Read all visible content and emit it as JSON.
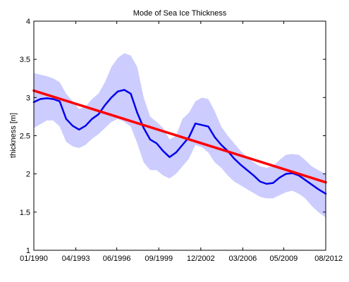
{
  "chart_data": {
    "type": "line",
    "title": "Mode of Sea Ice Thickness",
    "xlabel": "",
    "ylabel": "thickness [m]",
    "xlim": [
      1990.0,
      2012.5833
    ],
    "ylim": [
      1,
      4
    ],
    "grid": false,
    "x_ticks": [
      {
        "label": "01/1990",
        "value": 1990.0
      },
      {
        "label": "04/1993",
        "value": 1993.25
      },
      {
        "label": "06/1996",
        "value": 1996.4167
      },
      {
        "label": "09/1999",
        "value": 1999.6667
      },
      {
        "label": "12/2002",
        "value": 2002.9167
      },
      {
        "label": "03/2006",
        "value": 2006.1667
      },
      {
        "label": "05/2009",
        "value": 2009.3333
      },
      {
        "label": "08/2012",
        "value": 2012.5833
      }
    ],
    "y_ticks": [
      "1",
      "1.5",
      "2",
      "2.5",
      "3",
      "3.5",
      "4"
    ],
    "colors": {
      "mode_line": "#0000ee",
      "trend_line": "#ff0000",
      "uncertainty_band": "#ccccff"
    },
    "series": [
      {
        "type": "line",
        "x": [
          1990.0,
          1990.5,
          1991.0,
          1991.5,
          1992.0,
          1992.5,
          1993.0,
          1993.5,
          1994.0,
          1994.5,
          1995.0,
          1995.5,
          1996.0,
          1996.5,
          1997.0,
          1997.5,
          1998.0,
          1998.5,
          1999.0,
          1999.5,
          2000.0,
          2000.5,
          2001.0,
          2001.5,
          2002.0,
          2002.5,
          2003.0,
          2003.5,
          2004.0,
          2004.5,
          2005.0,
          2005.5,
          2006.0,
          2006.5,
          2007.0,
          2007.5,
          2008.0,
          2008.5,
          2009.0,
          2009.5,
          2010.0,
          2010.5,
          2011.0,
          2011.5,
          2012.0,
          2012.5833
        ],
        "y": [
          2.94,
          2.98,
          2.99,
          2.98,
          2.95,
          2.72,
          2.63,
          2.58,
          2.63,
          2.72,
          2.78,
          2.9,
          3.0,
          3.08,
          3.1,
          3.05,
          2.8,
          2.6,
          2.45,
          2.4,
          2.3,
          2.22,
          2.28,
          2.38,
          2.48,
          2.66,
          2.64,
          2.62,
          2.48,
          2.38,
          2.3,
          2.2,
          2.12,
          2.05,
          1.98,
          1.9,
          1.87,
          1.88,
          1.95,
          2.0,
          2.01,
          1.98,
          1.92,
          1.86,
          1.8,
          1.74
        ]
      },
      {
        "type": "line",
        "x": [
          1990.0,
          2012.5833
        ],
        "y": [
          3.09,
          1.89
        ]
      }
    ],
    "band": {
      "x": [
        1990.0,
        1990.5,
        1991.0,
        1991.5,
        1992.0,
        1992.5,
        1993.0,
        1993.5,
        1994.0,
        1994.5,
        1995.0,
        1995.5,
        1996.0,
        1996.5,
        1997.0,
        1997.5,
        1998.0,
        1998.5,
        1999.0,
        1999.5,
        2000.0,
        2000.5,
        2001.0,
        2001.5,
        2002.0,
        2002.5,
        2003.0,
        2003.5,
        2004.0,
        2004.5,
        2005.0,
        2005.5,
        2006.0,
        2006.5,
        2007.0,
        2007.5,
        2008.0,
        2008.5,
        2009.0,
        2009.5,
        2010.0,
        2010.5,
        2011.0,
        2011.5,
        2012.0,
        2012.5833
      ],
      "upper": [
        3.32,
        3.3,
        3.28,
        3.25,
        3.2,
        3.05,
        2.95,
        2.85,
        2.88,
        2.98,
        3.05,
        3.2,
        3.4,
        3.52,
        3.58,
        3.55,
        3.4,
        3.0,
        2.75,
        2.68,
        2.6,
        2.45,
        2.5,
        2.72,
        2.8,
        2.95,
        3.0,
        2.98,
        2.82,
        2.62,
        2.5,
        2.4,
        2.3,
        2.22,
        2.15,
        2.1,
        2.08,
        2.1,
        2.18,
        2.25,
        2.26,
        2.25,
        2.18,
        2.1,
        2.05,
        2.0
      ],
      "lower": [
        2.6,
        2.65,
        2.7,
        2.7,
        2.62,
        2.42,
        2.36,
        2.34,
        2.38,
        2.46,
        2.52,
        2.6,
        2.68,
        2.72,
        2.68,
        2.62,
        2.4,
        2.15,
        2.05,
        2.05,
        1.98,
        1.94,
        2.0,
        2.1,
        2.2,
        2.38,
        2.35,
        2.28,
        2.15,
        2.08,
        1.98,
        1.9,
        1.85,
        1.8,
        1.75,
        1.7,
        1.68,
        1.68,
        1.72,
        1.76,
        1.78,
        1.74,
        1.68,
        1.58,
        1.5,
        1.43
      ]
    }
  }
}
